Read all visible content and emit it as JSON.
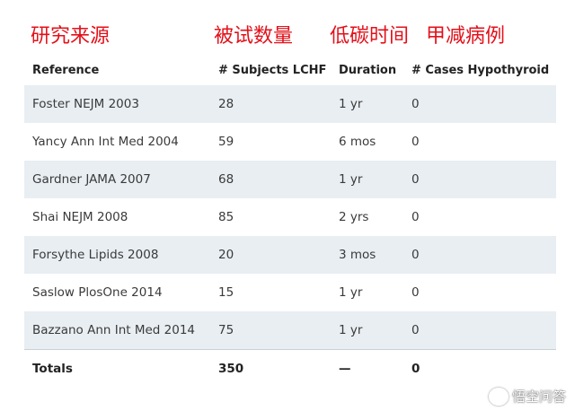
{
  "annotations": {
    "source": "研究来源",
    "subjects": "被试数量",
    "duration": "低碳时间",
    "cases": "甲减病例"
  },
  "table": {
    "headers": [
      "Reference",
      "# Subjects LCHF",
      "Duration",
      "# Cases Hypothyroid"
    ],
    "rows": [
      [
        "Foster NEJM 2003",
        "28",
        "1 yr",
        "0"
      ],
      [
        "Yancy Ann Int Med 2004",
        "59",
        "6 mos",
        "0"
      ],
      [
        "Gardner JAMA 2007",
        "68",
        "1 yr",
        "0"
      ],
      [
        "Shai NEJM 2008",
        "85",
        "2 yrs",
        "0"
      ],
      [
        "Forsythe Lipids 2008",
        "20",
        "3 mos",
        "0"
      ],
      [
        "Saslow PlosOne 2014",
        "15",
        "1 yr",
        "0"
      ],
      [
        "Bazzano Ann Int Med 2014",
        "75",
        "1 yr",
        "0"
      ]
    ],
    "totals": [
      "Totals",
      "350",
      "—",
      "0"
    ]
  },
  "watermark": {
    "text": "悟空问答",
    "icon": "speech-bubble-icon"
  },
  "colors": {
    "annotation_red": "#e3101a",
    "stripe": "#e8eef2"
  }
}
